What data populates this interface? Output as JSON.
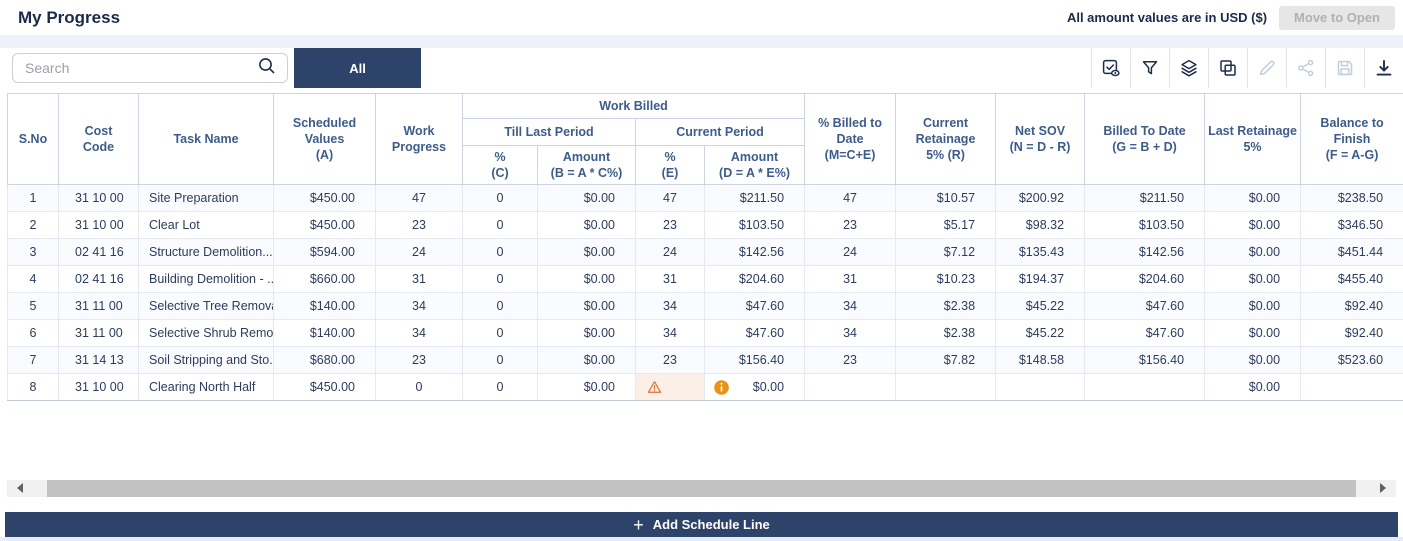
{
  "header": {
    "title": "My Progress",
    "currency_note": "All amount values are in USD ($)",
    "move_to_open_label": "Move to Open"
  },
  "toolbar": {
    "search_placeholder": "Search",
    "tab_all": "All",
    "icons": [
      {
        "name": "checkbox-eye-icon",
        "enabled": true
      },
      {
        "name": "filter-icon",
        "enabled": true
      },
      {
        "name": "layers-icon",
        "enabled": true
      },
      {
        "name": "copy-icon",
        "enabled": true
      },
      {
        "name": "edit-icon",
        "enabled": false
      },
      {
        "name": "share-icon",
        "enabled": false
      },
      {
        "name": "save-icon",
        "enabled": false
      },
      {
        "name": "download-icon",
        "enabled": true
      }
    ]
  },
  "colors": {
    "accent_navy": "#2d4369",
    "warning_orange": "#e0703a",
    "info_orange": "#e89412"
  },
  "table": {
    "groups": {
      "work_billed": "Work Billed",
      "till_last_period": "Till Last Period",
      "current_period": "Current Period"
    },
    "columns": [
      {
        "id": "sno",
        "l1": "S.No",
        "l2": ""
      },
      {
        "id": "cost_code",
        "l1": "Cost",
        "l2": "Code"
      },
      {
        "id": "task_name",
        "l1": "Task Name",
        "l2": ""
      },
      {
        "id": "scheduled_value",
        "l1": "Scheduled Values",
        "l2": "(A)"
      },
      {
        "id": "work_progress",
        "l1": "Work",
        "l2": "Progress"
      },
      {
        "id": "pct_c",
        "l1": "%",
        "l2": "(C)"
      },
      {
        "id": "amount_b",
        "l1": "Amount",
        "l2": "(B = A * C%)"
      },
      {
        "id": "pct_e",
        "l1": "%",
        "l2": "(E)"
      },
      {
        "id": "amount_d",
        "l1": "Amount",
        "l2": "(D = A * E%)"
      },
      {
        "id": "pct_billed",
        "l1": "% Billed to Date",
        "l2": "(M=C+E)"
      },
      {
        "id": "current_retainage",
        "l1": "Current Retainage",
        "l2": "5% (R)"
      },
      {
        "id": "net_sov",
        "l1": "Net SOV",
        "l2": "(N = D - R)"
      },
      {
        "id": "billed_to_date",
        "l1": "Billed To Date",
        "l2": "(G = B + D)"
      },
      {
        "id": "last_retainage",
        "l1": "Last Retainage",
        "l2": "5%"
      },
      {
        "id": "balance_to_finish",
        "l1": "Balance to Finish",
        "l2": "(F = A-G)"
      }
    ],
    "rows": [
      {
        "sno": "1",
        "cost_code": "31 10 00",
        "task_name": "Site Preparation",
        "scheduled_value": "$450.00",
        "work_progress": "47",
        "pct_c": "0",
        "amount_b": "$0.00",
        "pct_e": "47",
        "amount_d": "$211.50",
        "pct_billed": "47",
        "current_retainage": "$10.57",
        "net_sov": "$200.92",
        "billed_to_date": "$211.50",
        "last_retainage": "$0.00",
        "balance_to_finish": "$238.50"
      },
      {
        "sno": "2",
        "cost_code": "31 10 00",
        "task_name": "Clear Lot",
        "scheduled_value": "$450.00",
        "work_progress": "23",
        "pct_c": "0",
        "amount_b": "$0.00",
        "pct_e": "23",
        "amount_d": "$103.50",
        "pct_billed": "23",
        "current_retainage": "$5.17",
        "net_sov": "$98.32",
        "billed_to_date": "$103.50",
        "last_retainage": "$0.00",
        "balance_to_finish": "$346.50"
      },
      {
        "sno": "3",
        "cost_code": "02 41 16",
        "task_name": "Structure Demolition...",
        "scheduled_value": "$594.00",
        "work_progress": "24",
        "pct_c": "0",
        "amount_b": "$0.00",
        "pct_e": "24",
        "amount_d": "$142.56",
        "pct_billed": "24",
        "current_retainage": "$7.12",
        "net_sov": "$135.43",
        "billed_to_date": "$142.56",
        "last_retainage": "$0.00",
        "balance_to_finish": "$451.44"
      },
      {
        "sno": "4",
        "cost_code": "02 41 16",
        "task_name": "Building Demolition - ...",
        "scheduled_value": "$660.00",
        "work_progress": "31",
        "pct_c": "0",
        "amount_b": "$0.00",
        "pct_e": "31",
        "amount_d": "$204.60",
        "pct_billed": "31",
        "current_retainage": "$10.23",
        "net_sov": "$194.37",
        "billed_to_date": "$204.60",
        "last_retainage": "$0.00",
        "balance_to_finish": "$455.40"
      },
      {
        "sno": "5",
        "cost_code": "31 11 00",
        "task_name": "Selective Tree Removal",
        "scheduled_value": "$140.00",
        "work_progress": "34",
        "pct_c": "0",
        "amount_b": "$0.00",
        "pct_e": "34",
        "amount_d": "$47.60",
        "pct_billed": "34",
        "current_retainage": "$2.38",
        "net_sov": "$45.22",
        "billed_to_date": "$47.60",
        "last_retainage": "$0.00",
        "balance_to_finish": "$92.40"
      },
      {
        "sno": "6",
        "cost_code": "31 11 00",
        "task_name": "Selective Shrub Remo...",
        "scheduled_value": "$140.00",
        "work_progress": "34",
        "pct_c": "0",
        "amount_b": "$0.00",
        "pct_e": "34",
        "amount_d": "$47.60",
        "pct_billed": "34",
        "current_retainage": "$2.38",
        "net_sov": "$45.22",
        "billed_to_date": "$47.60",
        "last_retainage": "$0.00",
        "balance_to_finish": "$92.40"
      },
      {
        "sno": "7",
        "cost_code": "31 14 13",
        "task_name": "Soil Stripping and Sto...",
        "scheduled_value": "$680.00",
        "work_progress": "23",
        "pct_c": "0",
        "amount_b": "$0.00",
        "pct_e": "23",
        "amount_d": "$156.40",
        "pct_billed": "23",
        "current_retainage": "$7.82",
        "net_sov": "$148.58",
        "billed_to_date": "$156.40",
        "last_retainage": "$0.00",
        "balance_to_finish": "$523.60"
      },
      {
        "sno": "8",
        "cost_code": "31 10 00",
        "task_name": "Clearing North Half",
        "scheduled_value": "$450.00",
        "work_progress": "0",
        "pct_c": "0",
        "amount_b": "$0.00",
        "pct_e": "",
        "amount_d": "$0.00",
        "pct_billed": "",
        "current_retainage": "",
        "net_sov": "",
        "billed_to_date": "",
        "last_retainage": "$0.00",
        "balance_to_finish": "",
        "flags": {
          "pct_e_warning": true,
          "amount_d_info": true
        }
      }
    ]
  },
  "footer": {
    "add_label": "Add Schedule Line"
  }
}
